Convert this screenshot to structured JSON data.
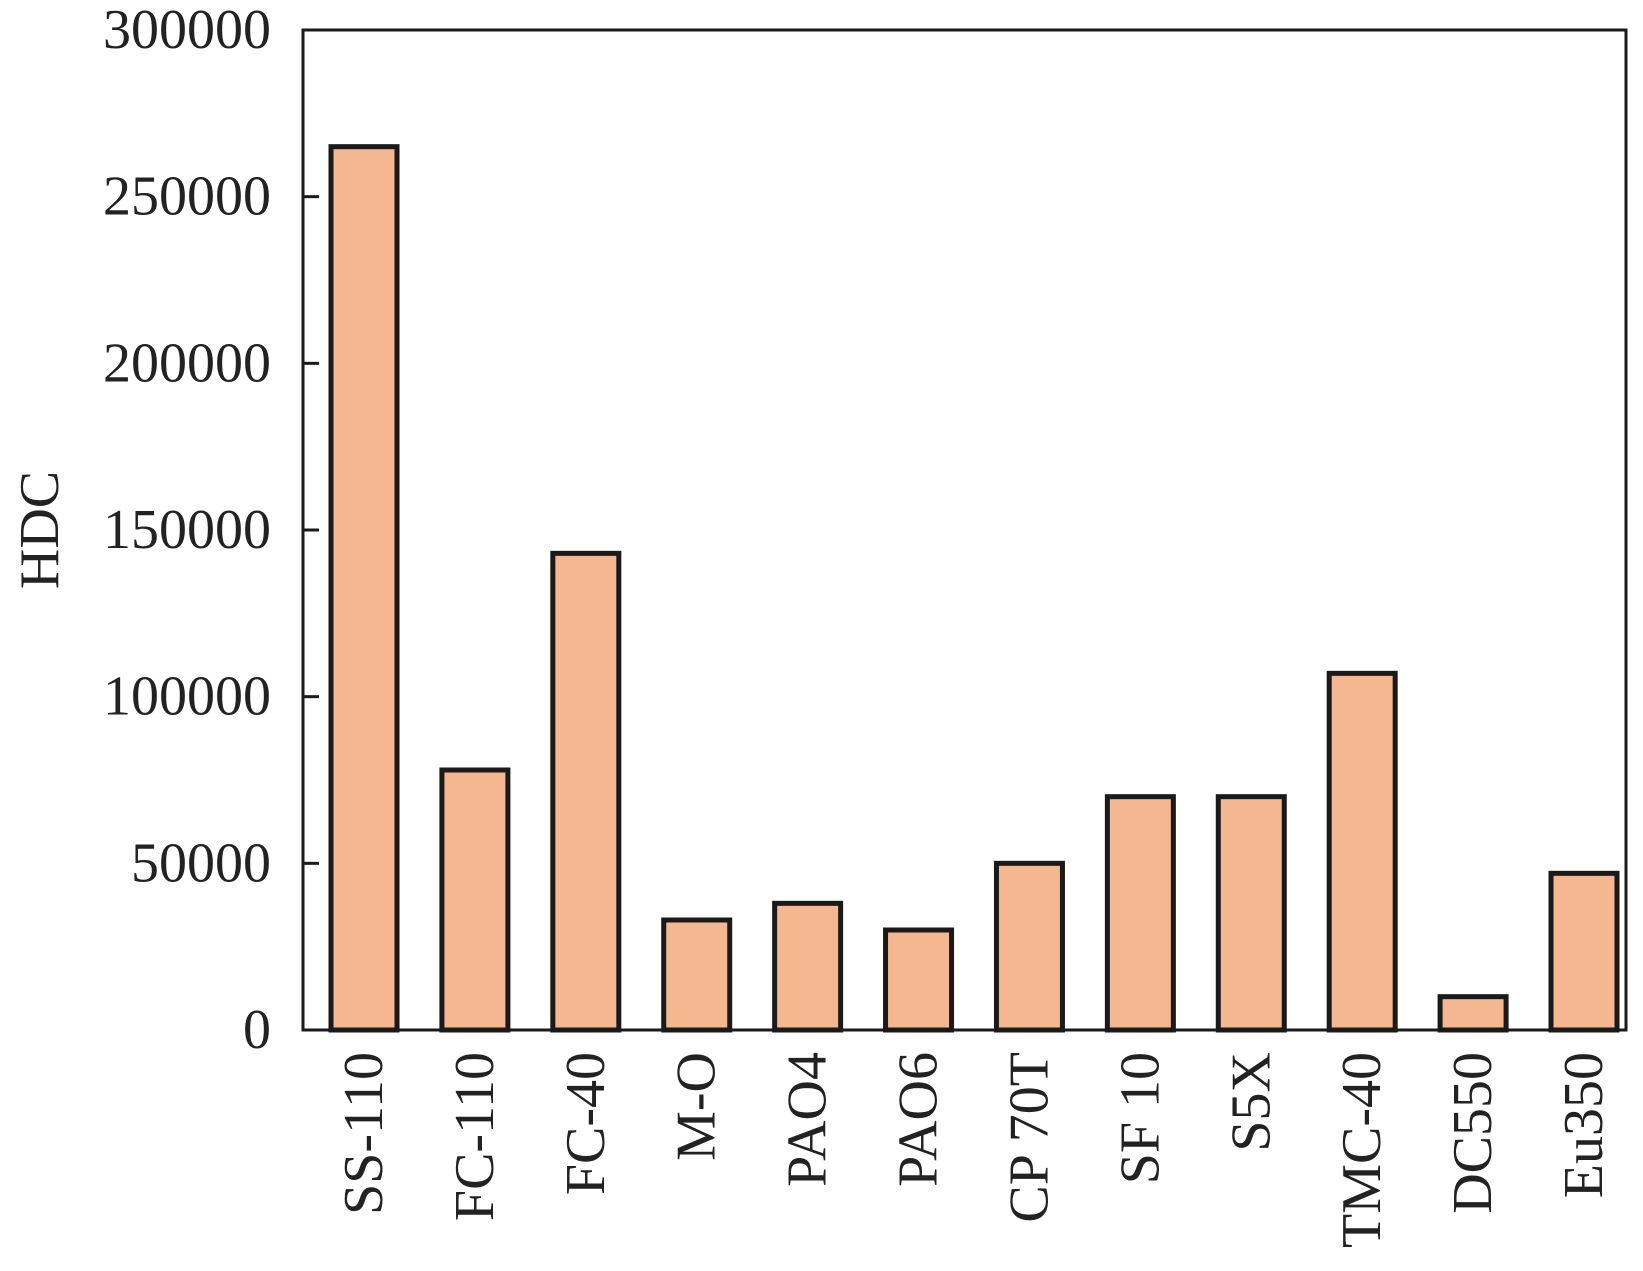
{
  "chart_data": {
    "type": "bar",
    "title": "",
    "xlabel": "",
    "ylabel": "HDC",
    "ylim": [
      0,
      300000
    ],
    "yticks": [
      0,
      50000,
      100000,
      150000,
      200000,
      250000,
      300000
    ],
    "ytick_labels": [
      "0",
      "50000",
      "100000",
      "150000",
      "200000",
      "250000",
      "300000"
    ],
    "categories": [
      "SS-110",
      "FC-110",
      "FC-40",
      "M-O",
      "PAO4",
      "PAO6",
      "CP 70T",
      "SF 10",
      "S5X",
      "TMC-40",
      "DC550",
      "Eu350"
    ],
    "values": [
      265000,
      78000,
      143000,
      33000,
      38000,
      30000,
      50000,
      70000,
      70000,
      107000,
      10000,
      47000
    ],
    "bar_color": "#f4b78f",
    "bar_edge_color": "#1a1a1a",
    "grid": false,
    "legend": "none"
  }
}
